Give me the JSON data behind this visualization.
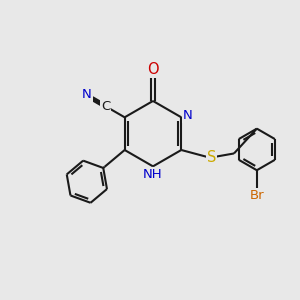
{
  "bg_color": "#e8e8e8",
  "bond_color": "#1a1a1a",
  "bond_width": 1.5,
  "atom_colors": {
    "C": "#1a1a1a",
    "N": "#0000cc",
    "O": "#cc0000",
    "S": "#ccaa00",
    "Br": "#cc6600",
    "H": "#0000cc"
  },
  "font_size": 9.5
}
